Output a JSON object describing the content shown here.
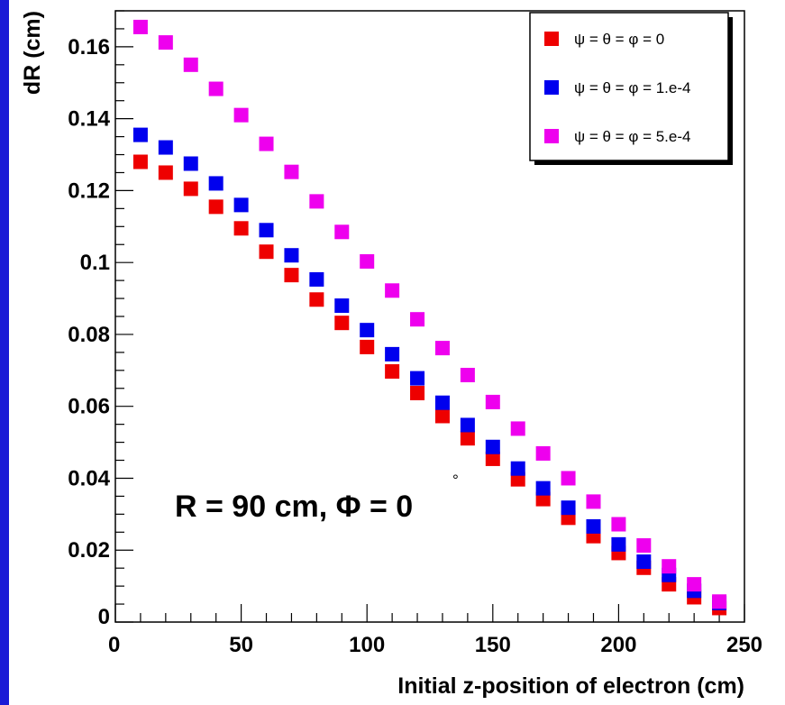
{
  "colors": {
    "background": "#ffffff",
    "left_strip": "#1a1ad6",
    "series_1": "#ee0000",
    "series_2": "#0000ee",
    "series_3": "#ee00ee",
    "axis": "#000000"
  },
  "chart_data": {
    "type": "scatter",
    "title": "",
    "xlabel": "Initial z-position of electron (cm)",
    "ylabel": "dR (cm)",
    "xlim": [
      0,
      250
    ],
    "ylim": [
      0,
      0.17
    ],
    "x_ticks": [
      "0",
      "50",
      "100",
      "150",
      "200",
      "250"
    ],
    "y_ticks": [
      "0",
      "0.02",
      "0.04",
      "0.06",
      "0.08",
      "0.1",
      "0.12",
      "0.14",
      "0.16"
    ],
    "grid": false,
    "legend_position": "top-right",
    "annotation": "R = 90 cm, Φ = 0",
    "annotation_superscript": "°",
    "x": [
      10,
      20,
      30,
      40,
      50,
      60,
      70,
      80,
      90,
      100,
      110,
      120,
      130,
      140,
      150,
      160,
      170,
      180,
      190,
      200,
      210,
      220,
      230,
      240
    ],
    "series": [
      {
        "name": "ψ = θ = φ = 0",
        "color": "#ee0000",
        "values": [
          0.128,
          0.125,
          0.1205,
          0.1155,
          0.1095,
          0.103,
          0.0965,
          0.0897,
          0.0832,
          0.0765,
          0.0697,
          0.0637,
          0.0573,
          0.0511,
          0.0454,
          0.0397,
          0.0342,
          0.029,
          0.0239,
          0.0192,
          0.0151,
          0.0105,
          0.0069,
          0.0039
        ]
      },
      {
        "name": "ψ = θ = φ = 1.e-4",
        "color": "#0000ee",
        "values": [
          0.1355,
          0.132,
          0.1275,
          0.122,
          0.116,
          0.109,
          0.102,
          0.0953,
          0.088,
          0.0812,
          0.0745,
          0.0678,
          0.061,
          0.0548,
          0.0487,
          0.0427,
          0.0372,
          0.0318,
          0.0266,
          0.0216,
          0.0168,
          0.0131,
          0.0087,
          0.0053
        ]
      },
      {
        "name": "ψ = θ = φ = 5.e-4",
        "color": "#ee00ee",
        "values": [
          0.1655,
          0.1612,
          0.155,
          0.1483,
          0.141,
          0.133,
          0.1252,
          0.117,
          0.1085,
          0.1003,
          0.0922,
          0.0842,
          0.0762,
          0.0687,
          0.0612,
          0.0538,
          0.0469,
          0.04,
          0.0335,
          0.0272,
          0.0213,
          0.0155,
          0.0105,
          0.0057
        ]
      }
    ]
  }
}
